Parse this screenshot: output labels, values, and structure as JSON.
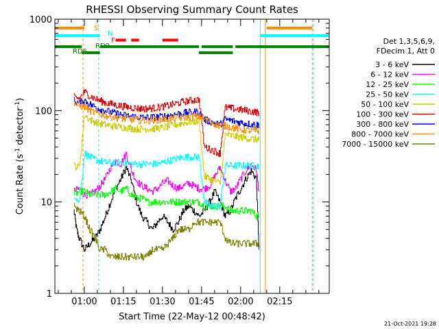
{
  "chart_data": {
    "type": "line",
    "title": "RHESSI Observing Summary Count Rates",
    "xlabel": "Start Time (22-May-12 00:48:42)",
    "ylabel_main": "Count Rate (s",
    "ylabel_sup1": "-1",
    "ylabel_mid": " detector",
    "ylabel_sup2": "-1",
    "ylabel_end": ")",
    "y_scale": "log",
    "ylim": [
      1,
      1000
    ],
    "x_range_minutes": [
      48.7,
      154
    ],
    "x_ticks": [
      {
        "minute": 60,
        "label": "01:00"
      },
      {
        "minute": 75,
        "label": "01:15"
      },
      {
        "minute": 90,
        "label": "01:30"
      },
      {
        "minute": 105,
        "label": "01:45"
      },
      {
        "minute": 120,
        "label": "02:00"
      },
      {
        "minute": 135,
        "label": "02:15"
      }
    ],
    "y_ticks": [
      {
        "value": 1,
        "label": "1"
      },
      {
        "value": 10,
        "label": "10"
      },
      {
        "value": 100,
        "label": "100"
      },
      {
        "value": 1000,
        "label": "1000"
      }
    ],
    "legend": {
      "placement": "right",
      "header_line1": "Det 1,3,5,6,9,",
      "header_line2": "FDecim 1, Att 0",
      "entries": [
        {
          "label": "3 - 6 keV",
          "color": "#000000"
        },
        {
          "label": "6 - 12 keV",
          "color": "#ff00ff"
        },
        {
          "label": "12 - 25 keV",
          "color": "#00ff00"
        },
        {
          "label": "25 - 50 keV",
          "color": "#00ffff"
        },
        {
          "label": "50 - 100 keV",
          "color": "#cccc00"
        },
        {
          "label": "100 - 300 keV",
          "color": "#e00000"
        },
        {
          "label": "300 - 800 keV",
          "color": "#0000ff"
        },
        {
          "label": "800 - 7000 keV",
          "color": "#ff8c00"
        },
        {
          "label": "7000 - 15000 keV",
          "color": "#808000"
        }
      ]
    },
    "series": [
      {
        "name": "3 - 6 keV",
        "color": "#000000",
        "x": [
          56,
          57,
          58,
          60,
          62,
          64,
          66,
          68,
          70,
          72,
          74,
          76,
          78,
          80,
          82,
          84,
          86,
          88,
          90,
          92,
          94,
          96,
          98,
          100,
          102,
          104,
          106,
          108,
          110,
          112,
          114,
          116,
          118,
          120,
          122,
          124,
          126,
          127
        ],
        "y": [
          8,
          5,
          4,
          3,
          3.5,
          4,
          5,
          7,
          10,
          14,
          18,
          24,
          17,
          10,
          7,
          6,
          5,
          6,
          7,
          6,
          5,
          6,
          8,
          9,
          8,
          7,
          8,
          10,
          13,
          10,
          7,
          8,
          11,
          14,
          18,
          22,
          18,
          3
        ]
      },
      {
        "name": "6 - 12 keV",
        "color": "#ff00ff",
        "x": [
          56,
          58,
          60,
          62,
          64,
          66,
          68,
          70,
          72,
          74,
          76,
          78,
          80,
          82,
          84,
          86,
          88,
          90,
          92,
          94,
          96,
          98,
          100,
          102,
          104,
          106,
          108,
          110,
          112,
          114,
          116,
          118,
          120,
          122,
          124,
          126,
          127
        ],
        "y": [
          13,
          14,
          12,
          12,
          13,
          15,
          18,
          24,
          28,
          26,
          34,
          22,
          17,
          15,
          14,
          13,
          14,
          16,
          17,
          15,
          14,
          15,
          16,
          15,
          14,
          14,
          15,
          19,
          24,
          17,
          13,
          14,
          18,
          22,
          26,
          22,
          13
        ]
      },
      {
        "name": "12 - 25 keV",
        "color": "#00ff00",
        "x": [
          56,
          58,
          60,
          62,
          64,
          66,
          68,
          70,
          72,
          74,
          76,
          78,
          80,
          82,
          84,
          86,
          88,
          90,
          92,
          94,
          96,
          98,
          100,
          102,
          104,
          106,
          108,
          110,
          112,
          114,
          116,
          118,
          120,
          122,
          124,
          126,
          127
        ],
        "y": [
          12,
          13,
          13,
          12,
          12,
          12,
          12,
          13,
          14,
          13,
          14,
          12,
          11,
          11,
          10,
          10,
          10,
          10,
          10,
          10,
          10,
          10,
          10,
          10,
          10,
          9,
          9,
          9,
          9,
          9,
          8,
          8,
          8,
          8,
          8,
          7,
          7
        ]
      },
      {
        "name": "25 - 50 keV",
        "color": "#00ffff",
        "x": [
          56,
          58,
          60,
          62,
          64,
          66,
          68,
          70,
          72,
          74,
          76,
          78,
          80,
          82,
          84,
          86,
          88,
          90,
          92,
          94,
          96,
          98,
          100,
          102,
          104,
          106,
          108,
          110,
          112,
          114,
          116,
          118,
          120,
          122,
          124,
          126,
          127
        ],
        "y": [
          12,
          10,
          34,
          31,
          29,
          28,
          27,
          27,
          27,
          27,
          27,
          26,
          26,
          26,
          26,
          26,
          26,
          27,
          28,
          29,
          30,
          31,
          31,
          31,
          31,
          10,
          9,
          9,
          9,
          25,
          25,
          25,
          25,
          25,
          25,
          25,
          25
        ]
      },
      {
        "name": "50 - 100 keV",
        "color": "#cccc00",
        "x": [
          56,
          58,
          60,
          62,
          64,
          66,
          68,
          70,
          72,
          74,
          76,
          78,
          80,
          82,
          84,
          86,
          88,
          90,
          92,
          94,
          96,
          98,
          100,
          102,
          104,
          106,
          108,
          110,
          112,
          114,
          116,
          118,
          120,
          122,
          124,
          126,
          127
        ],
        "y": [
          25,
          24,
          90,
          80,
          75,
          72,
          70,
          68,
          67,
          66,
          65,
          64,
          63,
          63,
          63,
          63,
          64,
          65,
          67,
          69,
          71,
          73,
          75,
          76,
          77,
          19,
          18,
          17,
          16,
          55,
          53,
          52,
          51,
          50,
          49,
          48,
          48
        ]
      },
      {
        "name": "100 - 300 keV",
        "color": "#e00000",
        "x": [
          56,
          58,
          60,
          62,
          64,
          66,
          68,
          70,
          72,
          74,
          76,
          78,
          80,
          82,
          84,
          86,
          88,
          90,
          92,
          94,
          96,
          98,
          100,
          102,
          104,
          106,
          108,
          110,
          112,
          114,
          116,
          118,
          120,
          122,
          124,
          126,
          127
        ],
        "y": [
          140,
          135,
          160,
          145,
          135,
          128,
          122,
          118,
          115,
          112,
          110,
          108,
          106,
          105,
          105,
          106,
          108,
          110,
          113,
          117,
          121,
          125,
          128,
          130,
          132,
          40,
          38,
          36,
          34,
          108,
          106,
          104,
          102,
          100,
          98,
          96,
          95
        ]
      },
      {
        "name": "300 - 800 keV",
        "color": "#0000ff",
        "x": [
          56,
          58,
          60,
          62,
          64,
          66,
          68,
          70,
          72,
          74,
          76,
          78,
          80,
          82,
          84,
          86,
          88,
          90,
          92,
          94,
          96,
          98,
          100,
          102,
          104,
          106,
          108,
          110,
          112,
          114,
          116,
          118,
          120,
          122,
          124,
          126,
          127
        ],
        "y": [
          128,
          120,
          130,
          118,
          110,
          104,
          100,
          96,
          93,
          90,
          88,
          86,
          85,
          84,
          84,
          84,
          85,
          86,
          88,
          90,
          92,
          94,
          95,
          96,
          97,
          80,
          76,
          73,
          70,
          80,
          78,
          76,
          74,
          72,
          71,
          70,
          70
        ]
      },
      {
        "name": "800 - 7000 keV",
        "color": "#ff8c00",
        "x": [
          56,
          58,
          60,
          62,
          64,
          66,
          68,
          70,
          72,
          74,
          76,
          78,
          80,
          82,
          84,
          86,
          88,
          90,
          92,
          94,
          96,
          98,
          100,
          102,
          104,
          106,
          108,
          110,
          112,
          114,
          116,
          118,
          120,
          122,
          124,
          126,
          127
        ],
        "y": [
          120,
          112,
          110,
          100,
          95,
          91,
          88,
          86,
          84,
          82,
          81,
          80,
          79,
          78,
          78,
          78,
          79,
          80,
          81,
          82,
          83,
          84,
          85,
          86,
          86,
          80,
          76,
          72,
          68,
          68,
          66,
          64,
          62,
          61,
          60,
          60,
          60
        ]
      },
      {
        "name": "7000 - 15000 keV",
        "color": "#808000",
        "x": [
          56,
          58,
          60,
          62,
          64,
          66,
          68,
          70,
          72,
          74,
          76,
          78,
          80,
          82,
          84,
          86,
          88,
          90,
          92,
          94,
          96,
          98,
          100,
          102,
          104,
          106,
          108,
          110,
          112,
          114,
          116,
          118,
          120,
          122,
          124,
          126,
          127
        ],
        "y": [
          9,
          8,
          7,
          5,
          4,
          3,
          3,
          2.5,
          2.5,
          2.5,
          2.5,
          2.5,
          2.5,
          2.5,
          2.5,
          3,
          3,
          3,
          3.5,
          4,
          5,
          5,
          5,
          6,
          6,
          6,
          6,
          6,
          6,
          4,
          3.5,
          3.5,
          3.5,
          3.5,
          3.5,
          3.5,
          3.5
        ]
      }
    ],
    "vertical_markers": [
      {
        "minute": 59.5,
        "color": "#ff8c00",
        "style": "dashed"
      },
      {
        "minute": 65.5,
        "color": "#00ffff",
        "style": "dashed"
      },
      {
        "minute": 127.5,
        "color": "#00ffff",
        "style": "solid"
      },
      {
        "minute": 129.5,
        "color": "#ff8c00",
        "style": "solid"
      },
      {
        "minute": 147.5,
        "color": "#ff8c00",
        "style": "dashed"
      },
      {
        "minute": 148,
        "color": "#00ffff",
        "style": "dashed"
      }
    ],
    "status_bars": [
      {
        "label": "S",
        "color": "#ff8c00",
        "level": 800,
        "segments": [
          [
            48.7,
            60
          ],
          [
            130,
            147.5
          ]
        ]
      },
      {
        "label": "N",
        "color": "#00ffff",
        "level": 660,
        "segments": [
          [
            48.7,
            66
          ],
          [
            127.5,
            154
          ]
        ]
      },
      {
        "label": "F",
        "color": "#ff0000",
        "level": 590,
        "segments": [
          [
            72,
            76
          ],
          [
            78,
            81
          ],
          [
            90,
            96
          ]
        ]
      },
      {
        "label": "RD9",
        "color": "#008000",
        "level": 500,
        "segments": [
          [
            48.7,
            59
          ],
          [
            66,
            104
          ],
          [
            105,
            117
          ],
          [
            118,
            154
          ]
        ]
      },
      {
        "label": "RD6",
        "color": "#008000",
        "level": 430,
        "segments": [
          [
            59,
            66
          ],
          [
            104,
            117
          ]
        ]
      }
    ]
  },
  "footer": {
    "timestamp": "21-Oct-2021 19:28"
  }
}
